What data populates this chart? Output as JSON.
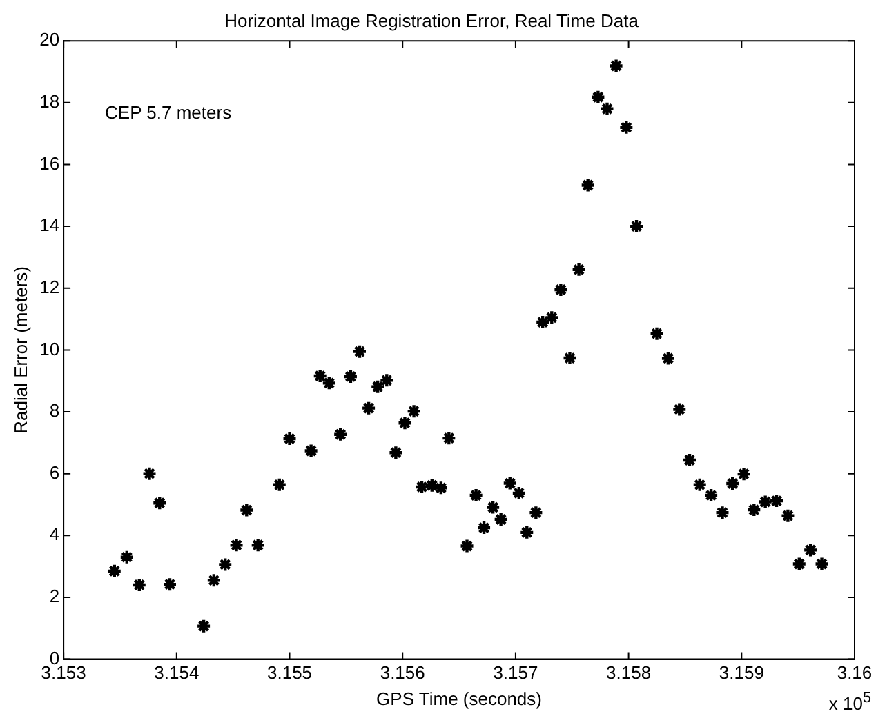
{
  "chart_data": {
    "type": "scatter",
    "title": "Horizontal Image Registration Error, Real Time Data",
    "xlabel": "GPS Time (seconds)",
    "ylabel": "Radial Error (meters)",
    "annotations": [
      "CEP 5.7 meters",
      "x 10$^{5}$"
    ],
    "xlim": [
      3.153,
      3.16
    ],
    "xticks": [
      3.153,
      3.154,
      3.155,
      3.156,
      3.157,
      3.158,
      3.159,
      3.16
    ],
    "ylim": [
      0,
      20
    ],
    "yticks": [
      0,
      2,
      4,
      6,
      8,
      10,
      12,
      14,
      16,
      18,
      20
    ],
    "grid": false,
    "legend": false,
    "marker": "cross",
    "series": [
      {
        "color": "#000000",
        "x": [
          3.15345,
          3.15356,
          3.15367,
          3.15376,
          3.15385,
          3.15394,
          3.15424,
          3.15433,
          3.15443,
          3.15453,
          3.15462,
          3.15472,
          3.15491,
          3.155,
          3.15519,
          3.15527,
          3.15535,
          3.15545,
          3.15554,
          3.15562,
          3.1557,
          3.15578,
          3.15586,
          3.15594,
          3.15602,
          3.1561,
          3.15617,
          3.15626,
          3.15634,
          3.15641,
          3.15657,
          3.15665,
          3.15672,
          3.1568,
          3.15687,
          3.15695,
          3.15703,
          3.1571,
          3.15718,
          3.15724,
          3.15732,
          3.1574,
          3.15748,
          3.15756,
          3.15764,
          3.15773,
          3.15781,
          3.15789,
          3.15798,
          3.15807,
          3.15825,
          3.15835,
          3.15845,
          3.15854,
          3.15863,
          3.15873,
          3.15883,
          3.15892,
          3.15902,
          3.15911,
          3.15921,
          3.15931,
          3.15941,
          3.15951,
          3.15961,
          3.15971
        ],
        "values": [
          2.85,
          3.3,
          2.4,
          6.0,
          5.05,
          2.42,
          1.07,
          2.55,
          3.06,
          3.69,
          4.82,
          3.69,
          5.64,
          7.13,
          6.74,
          9.16,
          8.93,
          7.27,
          9.14,
          9.95,
          8.12,
          8.81,
          9.02,
          6.68,
          7.64,
          8.02,
          5.57,
          5.62,
          5.54,
          7.15,
          3.66,
          5.3,
          4.25,
          4.91,
          4.52,
          5.69,
          5.37,
          4.1,
          4.74,
          10.9,
          11.05,
          11.95,
          9.74,
          12.6,
          15.33,
          18.18,
          17.8,
          19.19,
          17.2,
          14.0,
          10.53,
          9.73,
          8.08,
          6.44,
          5.64,
          5.3,
          4.74,
          5.68,
          5.99,
          4.83,
          5.09,
          5.12,
          4.64,
          3.08,
          3.53,
          3.08
        ]
      }
    ]
  }
}
